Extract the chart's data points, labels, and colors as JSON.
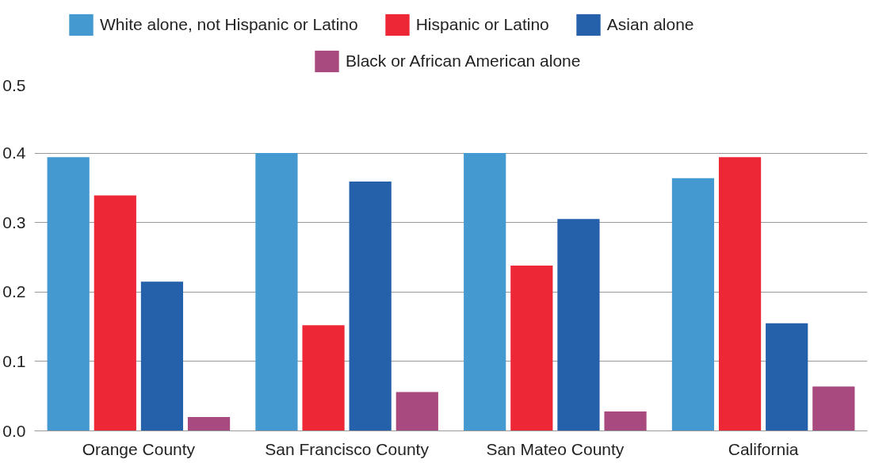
{
  "chart_data": {
    "type": "bar",
    "categories": [
      "Orange County",
      "San Francisco County",
      "San Mateo County",
      "California"
    ],
    "series": [
      {
        "name": "White alone, not Hispanic or Latino",
        "color": "#4499d0",
        "values": [
          0.394,
          0.4,
          0.4,
          0.364
        ]
      },
      {
        "name": "Hispanic or Latino",
        "color": "#ee2737",
        "values": [
          0.339,
          0.152,
          0.238,
          0.394
        ]
      },
      {
        "name": "Asian alone",
        "color": "#2560ab",
        "values": [
          0.215,
          0.359,
          0.305,
          0.155
        ]
      },
      {
        "name": "Black or African American alone",
        "color": "#a8497f",
        "values": [
          0.02,
          0.056,
          0.028,
          0.064
        ]
      }
    ],
    "ylim": [
      0,
      0.5
    ],
    "yticks": [
      {
        "value": 0,
        "label": "0.0"
      },
      0.1,
      0.2,
      0.3,
      0.4,
      0.5
    ],
    "grid": "y",
    "legend": "top"
  }
}
